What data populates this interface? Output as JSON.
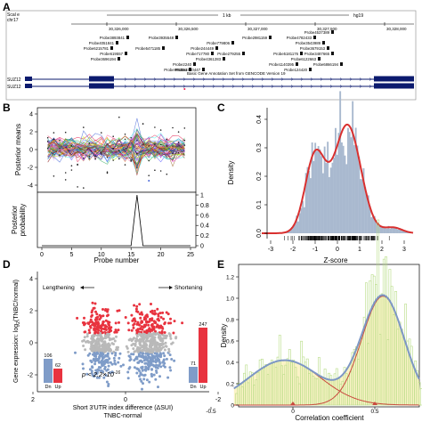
{
  "figure": {
    "panels": {
      "A": {
        "letter": "A",
        "header_left_1": "Scal e",
        "header_left_2": "chr17",
        "scale_label": "1 kb",
        "genome": "hg19",
        "coords": [
          "30,326,000",
          "30,326,500",
          "30,327,000",
          "30,327,500",
          "30,328,000"
        ],
        "probes": [
          "Probe4537389",
          "Probe3893841",
          "Probe3935548",
          "Probe2981159",
          "Probe4782433",
          "Probe4051841",
          "Probe779806",
          "Probe3543989",
          "Probe3679153",
          "Probe6215781",
          "Probe244449",
          "Probe3487665",
          "Probe619557",
          "Probe717780",
          "Probe279255",
          "Probe5181176",
          "Probe3696194",
          "Probe4361283",
          "Probe6122663",
          "Probe6866194",
          "Probe2240",
          "Probe5471185",
          "Probe1140395",
          "Probe985804",
          "Probe124420",
          "Probe2420447",
          "Probe2480905",
          "Probe5292915"
        ],
        "annotation_title": "Basic Gene Annotation Set from GENCODE Version 19",
        "gene_name_1": "SUZ12",
        "gene_name_2": "SUZ12"
      },
      "B": {
        "letter": "B",
        "ylabel_top": "Posterior means",
        "ylabel_bottom_1": "Posterior",
        "ylabel_bottom_2": "probability",
        "xlabel": "Probe number",
        "top_yticks": [
          "4",
          "2",
          "0",
          "-2",
          "-4"
        ],
        "bottom_yticks": [
          "1",
          "0.8",
          "0.6",
          "0.4",
          "0.2",
          "0"
        ],
        "xticks": [
          "0",
          "5",
          "10",
          "15",
          "20",
          "25"
        ]
      },
      "C": {
        "letter": "C",
        "ylabel": "Density",
        "xlabel": "Z-score",
        "yticks": [
          "0.4",
          "0.3",
          "0.2",
          "0.1",
          "0.0"
        ],
        "xticks": [
          "-3",
          "-2",
          "-1",
          "0",
          "1",
          "2",
          "3"
        ]
      },
      "D": {
        "letter": "D",
        "ylabel_1": "Gene expression: log",
        "ylabel_sub": "2",
        "ylabel_2": "(TNBC/normal)",
        "yticks": [
          "4",
          "2",
          "0",
          "-2"
        ],
        "xticks": [
          "2",
          "0",
          "-2"
        ],
        "xlabel_1": "Short 3'UTR index difference (ΔSUI)",
        "xlabel_2": "TNBC-normal",
        "lengthening": "Lengthening",
        "shortening": "Shortening",
        "pvalue": "p < 2.2×10",
        "pvalue_exp": "-16",
        "left_bars": {
          "dn_label": "Dn",
          "up_label": "Up",
          "dn_value": "106",
          "up_value": "62"
        },
        "right_bars": {
          "dn_label": "Dn",
          "up_label": "Up",
          "dn_value": "71",
          "up_value": "247"
        }
      },
      "E": {
        "letter": "E",
        "ylabel": "Density",
        "xlabel": "Correlation coefficient",
        "yticks": [
          "1.2",
          "1.0",
          "0.8",
          "0.6",
          "0.4",
          "0.2",
          "0"
        ],
        "xticks": [
          "-0.5",
          "0",
          "0.5",
          "1"
        ]
      }
    },
    "colors": {
      "blue_bar": "#7f9cc8",
      "red_bar": "#e8333f",
      "red_curve": "#d9302f",
      "hist_blue": "#a9b9cf",
      "hist_green": "#cfe8a8",
      "fill_yellow": "#fbf3c6",
      "gene_navy": "#0b1a6e"
    }
  }
}
